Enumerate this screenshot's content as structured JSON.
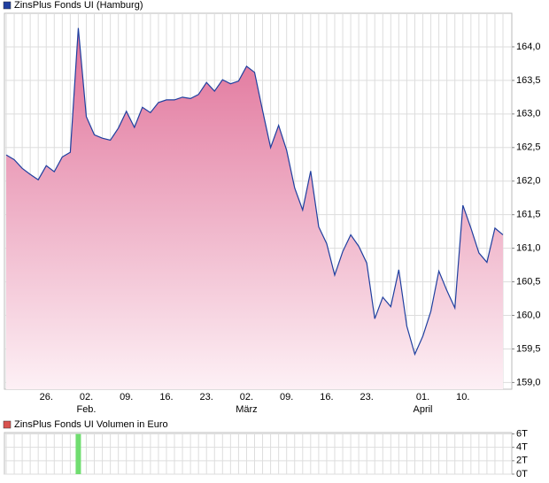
{
  "chart_data": [
    {
      "type": "area",
      "legend": "ZinsPlus Fonds UI (Hamburg)",
      "color": "#1f3f9f",
      "fill_top": "#e07098",
      "fill_bottom": "#fdf0f5",
      "categories": [
        null,
        null,
        null,
        null,
        null,
        "26.",
        null,
        null,
        null,
        null,
        "02.",
        null,
        null,
        null,
        null,
        "09.",
        null,
        null,
        null,
        null,
        "16.",
        null,
        null,
        null,
        null,
        "23.",
        null,
        null,
        null,
        null,
        "02.",
        null,
        null,
        null,
        null,
        "09.",
        null,
        null,
        null,
        null,
        "16.",
        null,
        null,
        null,
        null,
        "23.",
        null,
        null,
        null,
        null,
        null,
        null,
        "01.",
        null,
        null,
        null,
        null,
        "10.",
        null,
        null,
        null,
        null,
        null
      ],
      "months": [
        null,
        null,
        null,
        null,
        null,
        null,
        null,
        null,
        null,
        null,
        "Feb.",
        null,
        null,
        null,
        null,
        null,
        null,
        null,
        null,
        null,
        null,
        null,
        null,
        null,
        null,
        null,
        null,
        null,
        null,
        null,
        "März",
        null,
        null,
        null,
        null,
        null,
        null,
        null,
        null,
        null,
        null,
        null,
        null,
        null,
        null,
        null,
        null,
        null,
        null,
        null,
        null,
        null,
        "April",
        null,
        null,
        null,
        null,
        null,
        null,
        null,
        null,
        null,
        null
      ],
      "values": [
        162.39,
        162.32,
        162.19,
        162.1,
        162.02,
        162.23,
        162.14,
        162.36,
        162.43,
        164.28,
        162.96,
        162.69,
        162.64,
        162.61,
        162.79,
        163.04,
        162.8,
        163.1,
        163.02,
        163.17,
        163.21,
        163.21,
        163.25,
        163.23,
        163.29,
        163.47,
        163.34,
        163.51,
        163.45,
        163.49,
        163.71,
        163.62,
        163.05,
        162.5,
        162.83,
        162.46,
        161.9,
        161.57,
        162.15,
        161.32,
        161.07,
        160.6,
        160.95,
        161.2,
        161.03,
        160.78,
        159.95,
        160.27,
        160.13,
        160.68,
        159.84,
        159.42,
        159.69,
        160.06,
        160.66,
        160.37,
        160.11,
        161.64,
        161.3,
        160.93,
        160.79,
        161.3,
        161.2
      ],
      "ylim": [
        158.9,
        164.5
      ],
      "yticks": [
        {
          "value": 159.0,
          "label": "159,0"
        },
        {
          "value": 159.5,
          "label": "159,5"
        },
        {
          "value": 160.0,
          "label": "160,0"
        },
        {
          "value": 160.5,
          "label": "160,5"
        },
        {
          "value": 161.0,
          "label": "161,0"
        },
        {
          "value": 161.5,
          "label": "161,5"
        },
        {
          "value": 162.0,
          "label": "162,0"
        },
        {
          "value": 162.5,
          "label": "162,5"
        },
        {
          "value": 163.0,
          "label": "163,0"
        },
        {
          "value": 163.5,
          "label": "163,5"
        },
        {
          "value": 164.0,
          "label": "164,0"
        }
      ],
      "grid": true
    },
    {
      "type": "bar",
      "legend": "ZinsPlus Fonds UI Volumen in Euro",
      "color": "#d9534f",
      "bar_color": "#70dd70",
      "values": [
        0,
        0,
        0,
        0,
        0,
        0,
        0,
        0,
        0,
        6,
        0,
        0,
        0,
        0,
        0,
        0,
        0,
        0,
        0,
        0,
        0,
        0,
        0,
        0,
        0,
        0,
        0,
        0,
        0,
        0,
        0,
        0,
        0,
        0,
        0,
        0,
        0,
        0,
        0,
        0,
        0,
        0,
        0,
        0,
        0,
        0,
        0,
        0,
        0,
        0,
        0,
        0,
        0,
        0,
        0,
        0,
        0,
        0,
        0,
        0,
        0,
        0,
        0
      ],
      "ylim": [
        0,
        6.2
      ],
      "yticks": [
        {
          "value": 0,
          "label": "0T"
        },
        {
          "value": 2,
          "label": "2T"
        },
        {
          "value": 4,
          "label": "4T"
        },
        {
          "value": 6,
          "label": "6T"
        }
      ],
      "grid": true
    }
  ]
}
